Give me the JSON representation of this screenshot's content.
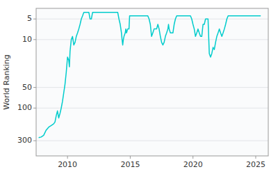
{
  "chart_data": {
    "type": "line",
    "ylabel": "World Ranking",
    "color": "#00cccc",
    "log": "y",
    "grid": true,
    "xlim": [
      2007.5,
      2026.0
    ],
    "ylim": [
      500,
      3.5
    ],
    "xticks": [
      2010,
      2015,
      2020,
      2025
    ],
    "yticks": [
      5,
      10,
      50,
      100,
      300
    ],
    "x": [
      2007.7,
      2007.9,
      2008.1,
      2008.3,
      2008.5,
      2008.7,
      2008.9,
      2009.0,
      2009.1,
      2009.2,
      2009.3,
      2009.4,
      2009.5,
      2009.6,
      2009.7,
      2009.8,
      2009.9,
      2010.0,
      2010.1,
      2010.15,
      2010.2,
      2010.3,
      2010.4,
      2010.5,
      2010.6,
      2010.7,
      2010.8,
      2010.9,
      2011.0,
      2011.1,
      2011.2,
      2011.3,
      2011.4,
      2011.5,
      2011.6,
      2011.65,
      2011.7,
      2011.75,
      2011.8,
      2011.9,
      2012.0,
      2012.1,
      2012.2,
      2012.3,
      2012.4,
      2012.5,
      2012.6,
      2012.7,
      2012.8,
      2012.9,
      2013.0,
      2013.1,
      2013.2,
      2013.3,
      2013.4,
      2013.5,
      2013.6,
      2013.7,
      2013.8,
      2013.9,
      2014.0,
      2014.1,
      2014.2,
      2014.3,
      2014.35,
      2014.4,
      2014.45,
      2014.5,
      2014.6,
      2014.65,
      2014.7,
      2014.8,
      2014.9,
      2014.95,
      2015.0,
      2015.05,
      2015.1,
      2015.2,
      2015.3,
      2015.4,
      2015.5,
      2015.6,
      2015.7,
      2015.8,
      2015.9,
      2016.0,
      2016.1,
      2016.2,
      2016.3,
      2016.4,
      2016.5,
      2016.6,
      2016.7,
      2016.8,
      2016.9,
      2017.0,
      2017.1,
      2017.2,
      2017.3,
      2017.4,
      2017.5,
      2017.6,
      2017.7,
      2017.8,
      2017.9,
      2018.0,
      2018.05,
      2018.1,
      2018.2,
      2018.3,
      2018.4,
      2018.5,
      2018.6,
      2018.7,
      2018.8,
      2018.9,
      2019.0,
      2019.1,
      2019.2,
      2019.3,
      2019.4,
      2019.5,
      2019.6,
      2019.7,
      2019.8,
      2019.9,
      2020.0,
      2020.1,
      2020.2,
      2020.3,
      2020.4,
      2020.5,
      2020.6,
      2020.7,
      2020.8,
      2020.9,
      2021.0,
      2021.1,
      2021.2,
      2021.3,
      2021.4,
      2021.5,
      2021.6,
      2021.7,
      2021.8,
      2021.9,
      2022.0,
      2022.1,
      2022.2,
      2022.3,
      2022.4,
      2022.5,
      2022.6,
      2022.7,
      2022.8,
      2022.9,
      2023.0,
      2023.1,
      2023.2,
      2023.3,
      2023.4,
      2023.5,
      2023.6,
      2023.7,
      2023.8,
      2023.9,
      2024.0,
      2024.1,
      2024.2,
      2024.3,
      2024.4,
      2024.5,
      2024.6,
      2024.7,
      2024.8,
      2024.9,
      2025.0,
      2025.2,
      2025.4
    ],
    "values": [
      270,
      265,
      250,
      210,
      190,
      180,
      170,
      160,
      130,
      110,
      140,
      120,
      100,
      80,
      60,
      45,
      30,
      18,
      20,
      25,
      15,
      10,
      9,
      12,
      11,
      9,
      8,
      7,
      6,
      5,
      4.5,
      4,
      4,
      4,
      4,
      4,
      4,
      4.5,
      5,
      5,
      4,
      4,
      4,
      4,
      4,
      4,
      4,
      4,
      4,
      4,
      4,
      4,
      4,
      4,
      4,
      4,
      4,
      4,
      4,
      4,
      4,
      5,
      6,
      8,
      10,
      12,
      10,
      9,
      8,
      7,
      8,
      7,
      7,
      4.5,
      4.5,
      4.5,
      4.5,
      4.5,
      4.5,
      4.5,
      4.5,
      4.5,
      4.5,
      4.5,
      4.5,
      4.5,
      4.5,
      4.5,
      4.5,
      4.5,
      5,
      6,
      9,
      8,
      7,
      7,
      7,
      6,
      7,
      9,
      11,
      12,
      11,
      9,
      8,
      7,
      6,
      7,
      8,
      8,
      8,
      6,
      5,
      4.5,
      4.5,
      4.5,
      4.5,
      4.5,
      4.5,
      4.5,
      4.5,
      4.5,
      4.5,
      4.5,
      4.5,
      5,
      6,
      7,
      9,
      8,
      7,
      8,
      9,
      9,
      6,
      6,
      5,
      5,
      5,
      16,
      18,
      16,
      13,
      14,
      11,
      9,
      8,
      7,
      8,
      9,
      8,
      7,
      6,
      5,
      4.5,
      4.5,
      4.5,
      4.5,
      4.5,
      4.5,
      4.5,
      4.5,
      4.5,
      4.5,
      4.5,
      4.5,
      4.5,
      4.5,
      4.5,
      4.5,
      4.5,
      4.5,
      4.5,
      4.5,
      4.5,
      4.5,
      4.5,
      4.5,
      4.5
    ]
  }
}
